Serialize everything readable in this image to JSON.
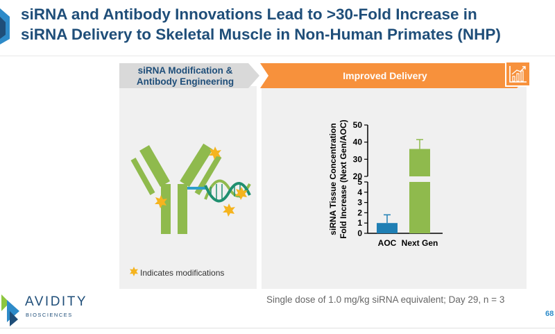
{
  "title": {
    "line1": "siRNA and Antibody Innovations Lead to >30-Fold Increase in",
    "line2": "siRNA Delivery to Skeletal Muscle in Non-Human Primates (NHP)"
  },
  "steps": [
    {
      "label": "siRNA Modification & Antibody Engineering",
      "color": "#d9d9d9"
    },
    {
      "label": "Improved Delivery",
      "color": "#f7913c"
    }
  ],
  "icons": {
    "step_icon": "growth-chart-icon",
    "legend_icon": "star-burst-icon",
    "illustration": "antibody-sirna-conjugate-icon",
    "logo": "avidity-logo-icon"
  },
  "legend": {
    "label": "Indicates modifications",
    "color": "#f5b41f"
  },
  "chart_data": {
    "type": "bar",
    "ylabel": "siRNA Tissue Concentration\nFold Increase (Next Gen/AOC)",
    "xlabel": "",
    "categories": [
      "AOC",
      "Next Gen"
    ],
    "values": [
      1.0,
      36
    ],
    "errors": [
      0.8,
      5.5
    ],
    "colors": [
      "#1f7fb4",
      "#8fba4d"
    ],
    "broken_axis": true,
    "lower_range": [
      0,
      5
    ],
    "upper_range": [
      20,
      50
    ],
    "lower_ticks": [
      0,
      1,
      2,
      3,
      4,
      5
    ],
    "upper_ticks": [
      20,
      30,
      40,
      50
    ],
    "grid": false
  },
  "footnote": "Single dose of 1.0 mg/kg siRNA equivalent; Day 29, n = 3",
  "page_number": "68",
  "logo": {
    "name": "AVIDITY",
    "sub": "BIOSCIENCES",
    "mark_colors": [
      "#8dc63f",
      "#2e8bc9",
      "#1f4e79"
    ]
  }
}
